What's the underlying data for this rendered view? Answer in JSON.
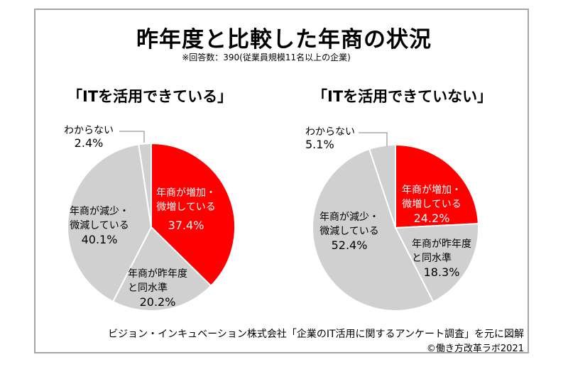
{
  "title": "昨年度と比較した年商の状況",
  "subtitle": "※回答数：390(従業員規模11名以上の企業)",
  "source": "ビジョン・インキュベーション株式会社「企業のIT活用に関するアンケート調査」を元に図解",
  "copyright": "©働き方改革ラボ2021",
  "chart_data": [
    {
      "type": "pie",
      "title": "「ITを活用できている」",
      "start": "12 o'clock, clockwise",
      "slices": [
        {
          "label": "年商が増加・微増している",
          "label_lines": [
            "年商が増加・",
            "微増している"
          ],
          "value": 37.4,
          "display": "37.4%",
          "color": "#ff0000"
        },
        {
          "label": "年商が昨年度と同水準",
          "label_lines": [
            "年商が昨年度",
            "と同水準"
          ],
          "value": 20.2,
          "display": "20.2%",
          "color": "#d0d0d0"
        },
        {
          "label": "年商が減少・微減している",
          "label_lines": [
            "年商が減少・",
            "微減している"
          ],
          "value": 40.1,
          "display": "40.1%",
          "color": "#d0d0d0"
        },
        {
          "label": "わからない",
          "label_lines": [
            "わからない"
          ],
          "value": 2.4,
          "display": "2.4%",
          "color": "#d0d0d0"
        }
      ]
    },
    {
      "type": "pie",
      "title": "「ITを活用できていない」",
      "start": "12 o'clock, clockwise",
      "slices": [
        {
          "label": "年商が増加・微増している",
          "label_lines": [
            "年商が増加・",
            "微増している"
          ],
          "value": 24.2,
          "display": "24.2%",
          "color": "#ff0000"
        },
        {
          "label": "年商が昨年度と同水準",
          "label_lines": [
            "年商が昨年度",
            "と同水準"
          ],
          "value": 18.3,
          "display": "18.3%",
          "color": "#d0d0d0"
        },
        {
          "label": "年商が減少・微減している",
          "label_lines": [
            "年商が減少・",
            "微減している"
          ],
          "value": 52.4,
          "display": "52.4%",
          "color": "#d0d0d0"
        },
        {
          "label": "わからない",
          "label_lines": [
            "わからない"
          ],
          "value": 5.1,
          "display": "5.1%",
          "color": "#d0d0d0"
        }
      ]
    }
  ]
}
